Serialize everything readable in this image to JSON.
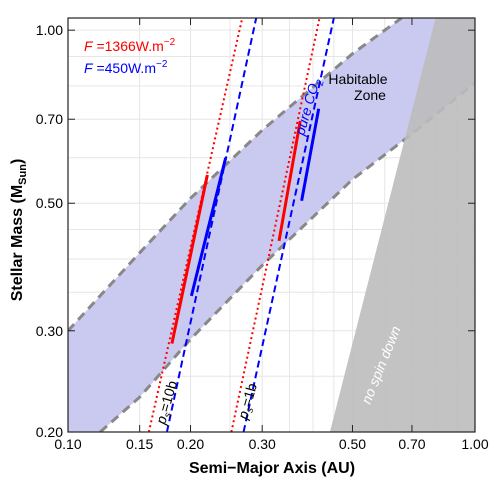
{
  "chart_data": {
    "type": "line",
    "xlabel": "Semi−Major Axis (AU)",
    "ylabel_main": "Stellar Mass (M",
    "ylabel_sub": "Sun",
    "ylabel_end": ")",
    "xscale": "log",
    "yscale": "log",
    "xlim": [
      0.1,
      1.0
    ],
    "ylim": [
      0.2,
      1.05
    ],
    "x_ticks": [
      0.1,
      0.15,
      0.2,
      0.3,
      0.5,
      0.7,
      1.0
    ],
    "x_tick_labels": [
      "0.10",
      "0.15",
      "0.20",
      "0.30",
      "0.50",
      "0.70",
      "1.00"
    ],
    "y_ticks": [
      0.2,
      0.3,
      0.5,
      0.7,
      1.0
    ],
    "y_tick_labels": [
      "0.20",
      "0.30",
      "0.50",
      "0.70",
      "1.00"
    ],
    "grid": true,
    "legend": {
      "placement": "top-left",
      "entries": [
        {
          "prefix": "F",
          "text": " =1366W.m",
          "exp": "−2",
          "color": "#ff0000"
        },
        {
          "prefix": "F",
          "text": " =450W.m",
          "exp": "−2",
          "color": "#0000ff"
        }
      ]
    },
    "habitable_zone": {
      "label_line1": "Habitable",
      "label_line2": "Zone",
      "inner_edge": [
        [
          0.1,
          0.3
        ],
        [
          0.15,
          0.41
        ],
        [
          0.2,
          0.51
        ],
        [
          0.3,
          0.67
        ],
        [
          0.5,
          0.91
        ],
        [
          0.66,
          1.05
        ]
      ],
      "outer_edge": [
        [
          0.12,
          0.2
        ],
        [
          0.15,
          0.23
        ],
        [
          0.2,
          0.29
        ],
        [
          0.3,
          0.39
        ],
        [
          0.5,
          0.55
        ],
        [
          0.7,
          0.66
        ],
        [
          1.0,
          0.81
        ]
      ],
      "fill_color": "#c7c7f0",
      "edge_color": "#888888"
    },
    "no_spin_down": {
      "label": "no spin down",
      "polygon": [
        [
          0.44,
          0.2
        ],
        [
          0.8,
          1.05
        ],
        [
          1.0,
          1.05
        ],
        [
          1.0,
          0.2
        ]
      ],
      "color": "#bdbdbd"
    },
    "series": [
      {
        "name": "F=1366, ps=10b",
        "color": "#ff0000",
        "style": "dotted",
        "points": [
          [
            0.158,
            0.2
          ],
          [
            0.268,
            1.05
          ]
        ]
      },
      {
        "name": "F=450, ps=10b",
        "color": "#0000ff",
        "style": "dashed",
        "points": [
          [
            0.175,
            0.2
          ],
          [
            0.29,
            1.05
          ]
        ]
      },
      {
        "name": "F=1366, ps=1b",
        "color": "#ff0000",
        "style": "dotted",
        "points": [
          [
            0.252,
            0.2
          ],
          [
            0.415,
            1.05
          ]
        ]
      },
      {
        "name": "F=450, ps=1b",
        "color": "#0000ff",
        "style": "dashed",
        "points": [
          [
            0.27,
            0.2
          ],
          [
            0.45,
            1.05
          ]
        ]
      },
      {
        "name": "F=1366 HZ red 10b",
        "color": "#ff0000",
        "style": "solid",
        "points": [
          [
            0.18,
            0.285
          ],
          [
            0.22,
            0.56
          ]
        ]
      },
      {
        "name": "F=450 HZ blue 10b",
        "color": "#0000ff",
        "style": "solid",
        "points": [
          [
            0.201,
            0.345
          ],
          [
            0.244,
            0.6
          ]
        ]
      },
      {
        "name": "F=1366 HZ red 1b",
        "color": "#ff0000",
        "style": "solid",
        "points": [
          [
            0.33,
            0.43
          ],
          [
            0.372,
            0.695
          ]
        ]
      },
      {
        "name": "F=450 HZ blue 1b",
        "color": "#0000ff",
        "style": "solid",
        "points": [
          [
            0.375,
            0.505
          ],
          [
            0.413,
            0.73
          ]
        ]
      }
    ],
    "annotations": {
      "pure_co2_pre": "pure CO",
      "pure_co2_sub": "2",
      "ps10_p": "p",
      "ps10_sub": "s",
      "ps10_rest": "=10b",
      "ps1_p": "p",
      "ps1_sub": "s",
      "ps1_rest": "=1b"
    }
  }
}
